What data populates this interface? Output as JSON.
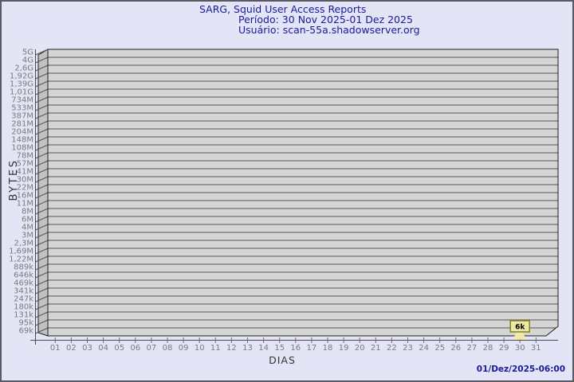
{
  "header": {
    "title": "SARG, Squid User Access Reports",
    "period": "Período: 30 Nov 2025-01 Dez 2025",
    "user": "Usuário: scan-55a.shadowserver.org"
  },
  "footer": {
    "generated_at": "01/Dez/2025-06:00"
  },
  "chart_data": {
    "type": "bar",
    "title": "SARG, Squid User Access Reports",
    "subtitle": "Período: 30 Nov 2025-01 Dez 2025 — Usuário: scan-55a.shadowserver.org",
    "xlabel": "DIAS",
    "ylabel": "BYTES",
    "y_scale": "log",
    "grid": true,
    "x_tick_labels": [
      "01",
      "02",
      "03",
      "04",
      "05",
      "06",
      "07",
      "08",
      "09",
      "10",
      "11",
      "12",
      "13",
      "14",
      "15",
      "16",
      "17",
      "18",
      "19",
      "20",
      "21",
      "22",
      "23",
      "24",
      "25",
      "26",
      "27",
      "28",
      "29",
      "30",
      "31"
    ],
    "y_tick_labels": [
      "5G",
      "4G",
      "2,6G",
      "1,92G",
      "1,39G",
      "1,01G",
      "734M",
      "533M",
      "387M",
      "281M",
      "204M",
      "148M",
      "108M",
      "78M",
      "57M",
      "41M",
      "30M",
      "22M",
      "16M",
      "11M",
      "8M",
      "6M",
      "4M",
      "3M",
      "2,3M",
      "1,69M",
      "1,22M",
      "889k",
      "646k",
      "469k",
      "341k",
      "247k",
      "180k",
      "131k",
      "95k",
      "69k"
    ],
    "series": [
      {
        "name": "bytes",
        "values": [
          0,
          0,
          0,
          0,
          0,
          0,
          0,
          0,
          0,
          0,
          0,
          0,
          0,
          0,
          0,
          0,
          0,
          0,
          0,
          0,
          0,
          0,
          0,
          0,
          0,
          0,
          0,
          0,
          0,
          6000,
          0
        ]
      }
    ],
    "annotations": [
      {
        "x": "30",
        "label": "6k"
      }
    ]
  },
  "colors": {
    "page-bg": "#E4E4F7",
    "border": "#5A5A64",
    "title": "#1A1A99",
    "plot-face": "#D5D5D5",
    "plot-wall": "#C2C2C2",
    "grid": "#555555",
    "frame": "#1F1F1F",
    "axis": "#4A4A4A",
    "tick": "#6E6E6E",
    "tick-text": "#7B7B7B",
    "axis-title": "#333333",
    "annotation-fill": "#EEE8AA",
    "annotation-border": "#83831C",
    "bar-fill": "#F2E9A6"
  }
}
